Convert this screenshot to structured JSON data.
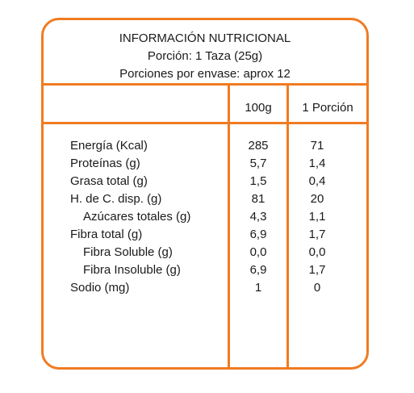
{
  "header": {
    "title": "INFORMACIÓN NUTRICIONAL",
    "portion": "Porción: 1 Taza (25g)",
    "servings": "Porciones por envase: aprox 12"
  },
  "columns": {
    "per100": "100g",
    "perPortion": "1 Porción"
  },
  "rows": [
    {
      "name": "Energía (Kcal)",
      "per100": "285",
      "perPortion": "71"
    },
    {
      "name": "Proteínas (g)",
      "per100": "5,7",
      "perPortion": "1,4"
    },
    {
      "name": "Grasa total (g)",
      "per100": "1,5",
      "perPortion": "0,4"
    },
    {
      "name": "H. de C. disp. (g)",
      "per100": "81",
      "perPortion": "20"
    },
    {
      "name": "Azúcares totales (g)",
      "per100": "4,3",
      "perPortion": "1,1"
    },
    {
      "name": "Fibra total (g)",
      "per100": "6,9",
      "perPortion": "1,7"
    },
    {
      "name": "Fibra Soluble (g)",
      "per100": "0,0",
      "perPortion": "0,0"
    },
    {
      "name": "Fibra Insoluble (g)",
      "per100": "6,9",
      "perPortion": "1,7"
    },
    {
      "name": "Sodio (mg)",
      "per100": "1",
      "perPortion": "0"
    }
  ],
  "colors": {
    "border": "#f07b22",
    "text": "#1a1a1a"
  }
}
